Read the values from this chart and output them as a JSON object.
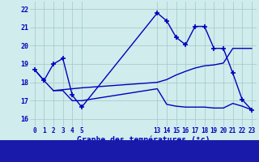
{
  "title": "Graphe des températures (°c)",
  "bg_color": "#d0ecec",
  "line_color": "#0000bb",
  "grid_color": "#a0c8c8",
  "bottom_bar_color": "#0000aa",
  "ylabel_ticks": [
    16,
    17,
    18,
    19,
    20,
    21,
    22
  ],
  "xtick_positions": [
    0,
    1,
    2,
    3,
    4,
    5,
    13,
    14,
    15,
    16,
    17,
    18,
    19,
    20,
    21,
    22,
    23
  ],
  "xtick_labels": [
    "0",
    "1",
    "2",
    "3",
    "4",
    "5",
    "13",
    "14",
    "15",
    "16",
    "17",
    "18",
    "19",
    "20",
    "21",
    "22",
    "23"
  ],
  "ylim": [
    15.6,
    22.4
  ],
  "xlim": [
    -0.5,
    23.5
  ],
  "line1_x": [
    0,
    1,
    2,
    3,
    4,
    5,
    13,
    14,
    15,
    16,
    17,
    18,
    19,
    20,
    21,
    22,
    23
  ],
  "line1_y": [
    18.7,
    18.1,
    17.55,
    17.55,
    17.0,
    17.0,
    17.65,
    16.8,
    16.7,
    16.65,
    16.65,
    16.65,
    16.6,
    16.6,
    16.85,
    16.7,
    16.5
  ],
  "line2_x": [
    2,
    3,
    4,
    5,
    13,
    14,
    15,
    16,
    17,
    18,
    19,
    20,
    21,
    22,
    23
  ],
  "line2_y": [
    17.55,
    17.6,
    17.65,
    17.7,
    18.0,
    18.15,
    18.4,
    18.6,
    18.78,
    18.9,
    18.95,
    19.05,
    19.85,
    19.85,
    19.85
  ],
  "line3_x": [
    0,
    1,
    2,
    3,
    4,
    5,
    13,
    14,
    15,
    16,
    17,
    18,
    19,
    20,
    21,
    22,
    23
  ],
  "line3_y": [
    18.7,
    18.1,
    19.0,
    19.3,
    17.3,
    16.65,
    21.78,
    21.35,
    20.45,
    20.05,
    21.05,
    21.05,
    19.85,
    19.85,
    18.5,
    17.05,
    16.5
  ],
  "marker_x": [
    0,
    1,
    2,
    3,
    4,
    5,
    13,
    14,
    15,
    16,
    17,
    18,
    19,
    20,
    21,
    22,
    23
  ],
  "marker_y": [
    18.7,
    18.1,
    19.0,
    19.3,
    17.3,
    16.65,
    21.78,
    21.35,
    20.45,
    20.05,
    21.05,
    21.05,
    19.85,
    19.85,
    18.5,
    17.05,
    16.5
  ]
}
